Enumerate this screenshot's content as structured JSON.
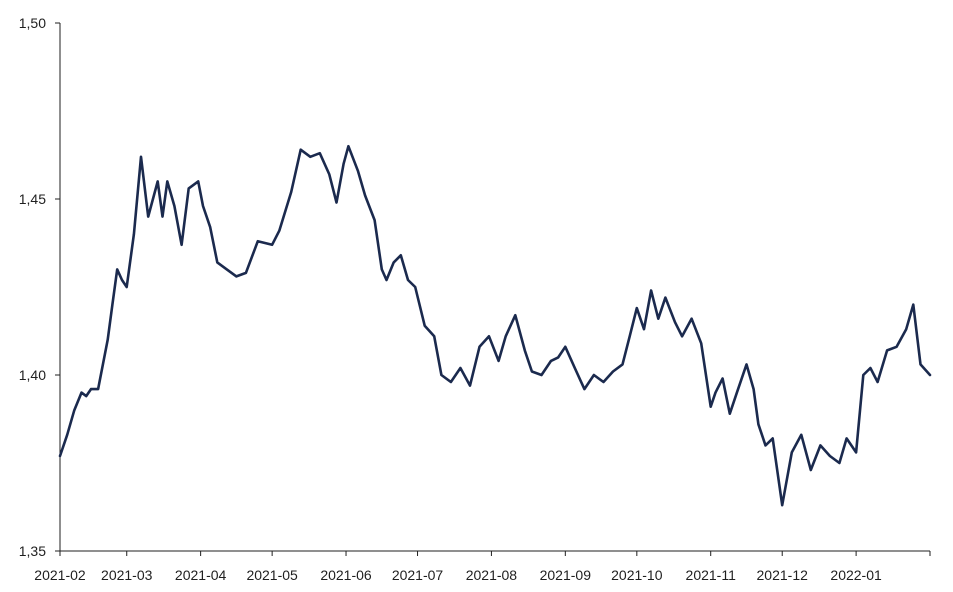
{
  "chart_data": {
    "type": "line",
    "title": "",
    "xlabel": "",
    "ylabel": "",
    "grid": false,
    "ylim": [
      1.35,
      1.5
    ],
    "yticks": [
      1.35,
      1.4,
      1.45,
      1.5
    ],
    "ytick_labels": [
      "1,35",
      "1,40",
      "1,45",
      "1,50"
    ],
    "xlim": [
      "2021-02-01",
      "2022-02-01"
    ],
    "xticks": [
      "2021-02-01",
      "2021-03-01",
      "2021-04-01",
      "2021-05-01",
      "2021-06-01",
      "2021-07-01",
      "2021-08-01",
      "2021-09-01",
      "2021-10-01",
      "2021-11-01",
      "2021-12-01",
      "2022-01-01",
      "2022-02-01"
    ],
    "xtick_labels": [
      "2021-02",
      "2021-03",
      "2021-04",
      "2021-05",
      "2021-06",
      "2021-07",
      "2021-08",
      "2021-09",
      "2021-10",
      "2021-11",
      "2021-12",
      "2022-01",
      ""
    ],
    "colors": {
      "series": "#1b2a4e",
      "axis": "#1f1f1f"
    },
    "series": [
      {
        "name": "",
        "x": [
          "2021-02-01",
          "2021-02-04",
          "2021-02-07",
          "2021-02-10",
          "2021-02-12",
          "2021-02-14",
          "2021-02-17",
          "2021-02-21",
          "2021-02-23",
          "2021-02-25",
          "2021-02-27",
          "2021-03-01",
          "2021-03-04",
          "2021-03-07",
          "2021-03-10",
          "2021-03-14",
          "2021-03-16",
          "2021-03-18",
          "2021-03-21",
          "2021-03-24",
          "2021-03-27",
          "2021-03-31",
          "2021-04-02",
          "2021-04-05",
          "2021-04-08",
          "2021-04-12",
          "2021-04-16",
          "2021-04-20",
          "2021-04-25",
          "2021-05-01",
          "2021-05-04",
          "2021-05-09",
          "2021-05-13",
          "2021-05-17",
          "2021-05-21",
          "2021-05-25",
          "2021-05-28",
          "2021-05-31",
          "2021-06-02",
          "2021-06-06",
          "2021-06-09",
          "2021-06-13",
          "2021-06-16",
          "2021-06-18",
          "2021-06-21",
          "2021-06-24",
          "2021-06-27",
          "2021-06-30",
          "2021-07-04",
          "2021-07-08",
          "2021-07-11",
          "2021-07-15",
          "2021-07-19",
          "2021-07-23",
          "2021-07-27",
          "2021-07-31",
          "2021-08-04",
          "2021-08-07",
          "2021-08-11",
          "2021-08-15",
          "2021-08-18",
          "2021-08-22",
          "2021-08-26",
          "2021-08-29",
          "2021-09-01",
          "2021-09-05",
          "2021-09-09",
          "2021-09-13",
          "2021-09-17",
          "2021-09-21",
          "2021-09-25",
          "2021-09-28",
          "2021-10-01",
          "2021-10-04",
          "2021-10-07",
          "2021-10-10",
          "2021-10-13",
          "2021-10-17",
          "2021-10-20",
          "2021-10-24",
          "2021-10-28",
          "2021-11-01",
          "2021-11-03",
          "2021-11-06",
          "2021-11-09",
          "2021-11-12",
          "2021-11-16",
          "2021-11-19",
          "2021-11-21",
          "2021-11-24",
          "2021-11-27",
          "2021-12-01",
          "2021-12-05",
          "2021-12-09",
          "2021-12-13",
          "2021-12-17",
          "2021-12-21",
          "2021-12-25",
          "2021-12-28",
          "2022-01-01",
          "2022-01-04",
          "2022-01-07",
          "2022-01-10",
          "2022-01-14",
          "2022-01-18",
          "2022-01-22",
          "2022-01-25",
          "2022-01-28",
          "2022-02-01"
        ],
        "y": [
          1.377,
          1.383,
          1.39,
          1.395,
          1.394,
          1.396,
          1.396,
          1.41,
          1.42,
          1.43,
          1.427,
          1.425,
          1.44,
          1.462,
          1.445,
          1.455,
          1.445,
          1.455,
          1.448,
          1.437,
          1.453,
          1.455,
          1.448,
          1.442,
          1.432,
          1.43,
          1.428,
          1.429,
          1.438,
          1.437,
          1.441,
          1.452,
          1.464,
          1.462,
          1.463,
          1.457,
          1.449,
          1.46,
          1.465,
          1.458,
          1.451,
          1.444,
          1.43,
          1.427,
          1.432,
          1.434,
          1.427,
          1.425,
          1.414,
          1.411,
          1.4,
          1.398,
          1.402,
          1.397,
          1.408,
          1.411,
          1.404,
          1.411,
          1.417,
          1.407,
          1.401,
          1.4,
          1.404,
          1.405,
          1.408,
          1.402,
          1.396,
          1.4,
          1.398,
          1.401,
          1.403,
          1.411,
          1.419,
          1.413,
          1.424,
          1.416,
          1.422,
          1.415,
          1.411,
          1.416,
          1.409,
          1.391,
          1.395,
          1.399,
          1.389,
          1.395,
          1.403,
          1.396,
          1.386,
          1.38,
          1.382,
          1.363,
          1.378,
          1.383,
          1.373,
          1.38,
          1.377,
          1.375,
          1.382,
          1.378,
          1.4,
          1.402,
          1.398,
          1.407,
          1.408,
          1.413,
          1.42,
          1.403,
          1.4
        ]
      }
    ]
  }
}
